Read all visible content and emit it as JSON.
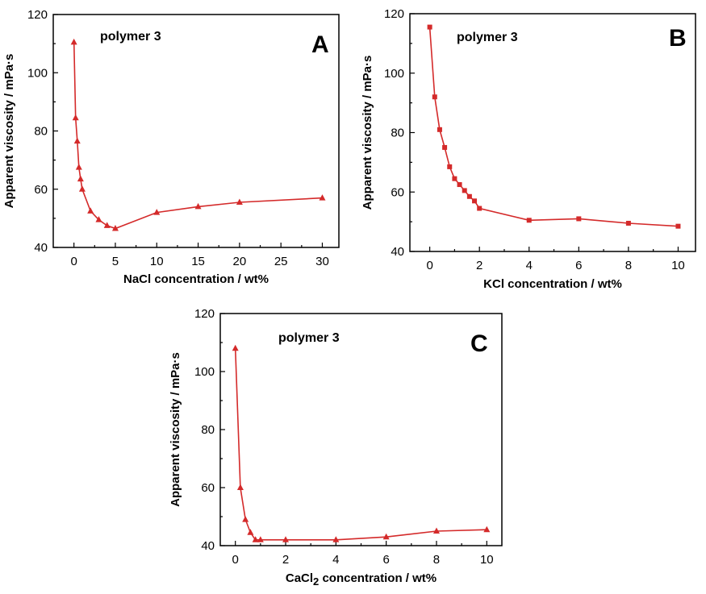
{
  "chart_data": [
    {
      "type": "line",
      "panel_label": "A",
      "annotation": "polymer 3",
      "xlabel": "NaCl concentration / wt%",
      "ylabel": "Apparent viscosity / mPa·s",
      "xlim": [
        -2.5,
        32
      ],
      "ylim": [
        40,
        120
      ],
      "xticks": [
        0,
        5,
        10,
        15,
        20,
        25,
        30
      ],
      "yticks": [
        40,
        60,
        80,
        100,
        120
      ],
      "marker": "triangle",
      "color": "#d42a2a",
      "grid": false,
      "x": [
        0,
        0.2,
        0.4,
        0.6,
        0.8,
        1,
        2,
        3,
        4,
        5,
        10,
        15,
        20,
        30
      ],
      "y": [
        110.5,
        84.5,
        76.5,
        67.5,
        63.5,
        60,
        52.5,
        49.5,
        47.5,
        46.5,
        52,
        54,
        55.5,
        57
      ]
    },
    {
      "type": "line",
      "panel_label": "B",
      "annotation": "polymer 3",
      "xlabel": "KCl concentration / wt%",
      "ylabel": "Apparent viscosity / mPa·s",
      "xlim": [
        -0.8,
        10.7
      ],
      "ylim": [
        40,
        120
      ],
      "xticks": [
        0,
        2,
        4,
        6,
        8,
        10
      ],
      "yticks": [
        40,
        60,
        80,
        100,
        120
      ],
      "marker": "square",
      "color": "#d42a2a",
      "grid": false,
      "x": [
        0,
        0.2,
        0.4,
        0.6,
        0.8,
        1,
        1.2,
        1.4,
        1.6,
        1.8,
        2,
        4,
        6,
        8,
        10
      ],
      "y": [
        115.5,
        92,
        81,
        75,
        68.5,
        64.5,
        62.5,
        60.5,
        58.5,
        57,
        54.5,
        50.5,
        51,
        49.5,
        48.5
      ]
    },
    {
      "type": "line",
      "panel_label": "C",
      "annotation": "polymer 3",
      "xlabel_prefix": "CaCl",
      "xlabel_sub": "2",
      "xlabel_suffix": " concentration / wt%",
      "ylabel": "Apparent viscosity / mPa·s",
      "xlim": [
        -0.6,
        10.6
      ],
      "ylim": [
        40,
        120
      ],
      "xticks": [
        0,
        2,
        4,
        6,
        8,
        10
      ],
      "yticks": [
        40,
        60,
        80,
        100,
        120
      ],
      "marker": "triangle",
      "color": "#d42a2a",
      "grid": false,
      "x": [
        0,
        0.2,
        0.4,
        0.6,
        0.8,
        1,
        2,
        4,
        6,
        8,
        10
      ],
      "y": [
        108,
        60,
        49,
        44.5,
        42,
        42,
        42,
        42,
        43,
        45,
        45.5
      ]
    }
  ]
}
